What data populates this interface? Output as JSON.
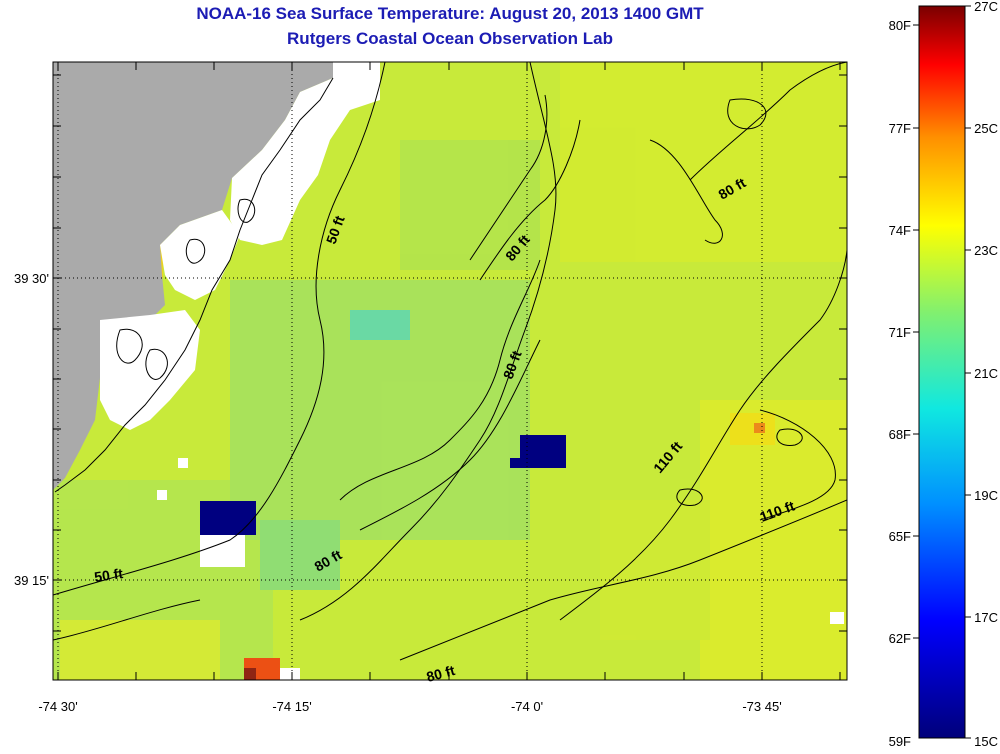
{
  "header": {
    "title": "NOAA-16 Sea Surface Temperature:  August 20, 2013 1400 GMT",
    "subtitle": "Rutgers Coastal Ocean Observation Lab"
  },
  "axes": {
    "x_ticks": [
      "-74 30'",
      "-74 15'",
      "-74 0'",
      "-73 45'"
    ],
    "y_ticks": [
      "39 30'",
      "39 15'"
    ]
  },
  "contours": [
    "50 ft",
    "50 ft",
    "80 ft",
    "80 ft",
    "80 ft",
    "80 ft",
    "80 ft",
    "110 ft",
    "110 ft"
  ],
  "colorbar": {
    "fahrenheit": [
      "80F",
      "77F",
      "74F",
      "71F",
      "68F",
      "65F",
      "62F",
      "59F"
    ],
    "celsius": [
      "27C",
      "25C",
      "23C",
      "21C",
      "19C",
      "17C",
      "15C"
    ]
  },
  "colors": {
    "land": "#aaaaaa",
    "cloud": "#ffffff",
    "water": "#c8ea3a",
    "missing": "#000080",
    "title": "#1c1cb4"
  }
}
